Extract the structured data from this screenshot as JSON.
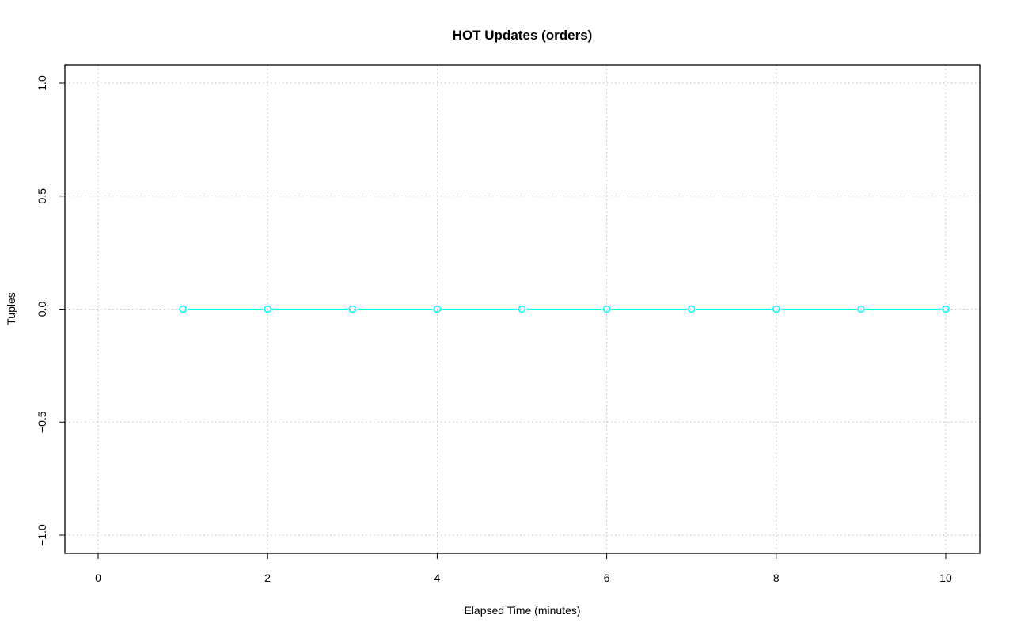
{
  "chart_data": {
    "type": "line",
    "title": "HOT Updates (orders)",
    "xlabel": "Elapsed Time (minutes)",
    "ylabel": "Tuples",
    "xlim": [
      0,
      10
    ],
    "ylim": [
      -1,
      1
    ],
    "x_ticks": [
      "0",
      "2",
      "4",
      "6",
      "8",
      "10"
    ],
    "y_ticks": [
      "-1.0",
      "-0.5",
      "0.0",
      "0.5",
      "1.0"
    ],
    "grid": true,
    "series": [
      {
        "color": "#00ffff",
        "marker": "open-circle",
        "x": [
          1,
          2,
          3,
          4,
          5,
          6,
          7,
          8,
          9,
          10
        ],
        "y": [
          0,
          0,
          0,
          0,
          0,
          0,
          0,
          0,
          0,
          0
        ]
      }
    ]
  }
}
